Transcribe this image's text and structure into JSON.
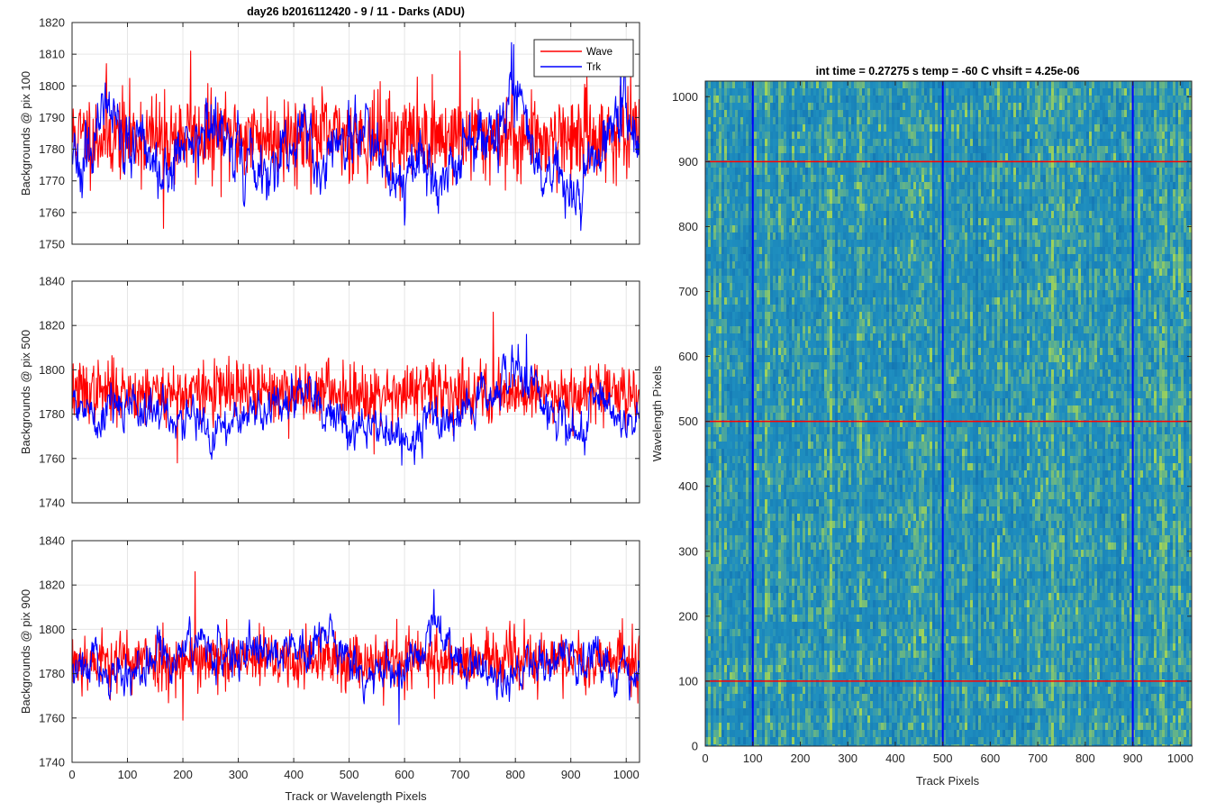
{
  "figure_title": "day26 b2016112420 - 9 / 11 - Darks (ADU)",
  "colors": {
    "wave": "#ff0000",
    "trk": "#0000ff",
    "grid": "#e5e5e5",
    "axis": "#262626",
    "heat_low": "#1f8fbf",
    "heat_high": "#9fd35a"
  },
  "chart_data": [
    {
      "type": "line",
      "ylabel": "Backgrounds @ pix 100",
      "xlabel": "",
      "xlim": [
        0,
        1024
      ],
      "ylim": [
        1750,
        1820
      ],
      "xticks": [
        0,
        100,
        200,
        300,
        400,
        500,
        600,
        700,
        800,
        900,
        1000
      ],
      "yticks": [
        1750,
        1760,
        1770,
        1780,
        1790,
        1800,
        1810,
        1820
      ],
      "legend": {
        "placement": "top-right",
        "entries": [
          "Wave",
          "Trk"
        ]
      },
      "grid": true,
      "series": [
        {
          "name": "Wave",
          "color": "#ff0000",
          "mean": 1784,
          "noise": 9,
          "seed": 11,
          "bumps": [],
          "extremes": [
            [
              62,
              1807
            ],
            [
              165,
              1755
            ],
            [
              214,
              1811
            ],
            [
              700,
              1811
            ]
          ]
        },
        {
          "name": "Trk",
          "color": "#0000ff",
          "mean": 1781,
          "noise": 3.5,
          "seed": 23,
          "bumps": [
            [
              60,
              12,
              6
            ],
            [
              165,
              25,
              -7
            ],
            [
              250,
              20,
              5
            ],
            [
              350,
              25,
              -10
            ],
            [
              450,
              12,
              -6
            ],
            [
              590,
              25,
              -12
            ],
            [
              660,
              30,
              -6
            ],
            [
              800,
              15,
              20
            ],
            [
              850,
              30,
              -8
            ],
            [
              900,
              20,
              -12
            ],
            [
              990,
              18,
              15
            ]
          ],
          "extremes": [
            [
              797,
              1813
            ],
            [
              600,
              1756
            ],
            [
              990,
              1809
            ]
          ]
        }
      ]
    },
    {
      "type": "line",
      "ylabel": "Backgrounds @ pix 500",
      "xlabel": "",
      "xlim": [
        0,
        1024
      ],
      "ylim": [
        1740,
        1840
      ],
      "xticks": [
        0,
        100,
        200,
        300,
        400,
        500,
        600,
        700,
        800,
        900,
        1000
      ],
      "yticks": [
        1740,
        1760,
        1780,
        1800,
        1820,
        1840
      ],
      "grid": true,
      "series": [
        {
          "name": "Wave",
          "color": "#ff0000",
          "mean": 1790,
          "noise": 9,
          "seed": 37,
          "bumps": [],
          "extremes": [
            [
              760,
              1826
            ],
            [
              190,
              1758
            ],
            [
              545,
              1762
            ]
          ]
        },
        {
          "name": "Trk",
          "color": "#0000ff",
          "mean": 1780,
          "noise": 3.5,
          "seed": 41,
          "bumps": [
            [
              50,
              40,
              5
            ],
            [
              260,
              40,
              -6
            ],
            [
              400,
              30,
              8
            ],
            [
              570,
              50,
              -10
            ],
            [
              800,
              40,
              20
            ],
            [
              880,
              40,
              -7
            ]
          ],
          "extremes": [
            [
              820,
              1816
            ],
            [
              595,
              1757
            ]
          ]
        }
      ]
    },
    {
      "type": "line",
      "ylabel": "Backgrounds @ pix 900",
      "xlabel": "Track or Wavelength Pixels",
      "xlim": [
        0,
        1024
      ],
      "ylim": [
        1740,
        1840
      ],
      "xticks": [
        0,
        100,
        200,
        300,
        400,
        500,
        600,
        700,
        800,
        900,
        1000
      ],
      "yticks": [
        1740,
        1760,
        1780,
        1800,
        1820,
        1840
      ],
      "grid": true,
      "series": [
        {
          "name": "Wave",
          "color": "#ff0000",
          "mean": 1786,
          "noise": 9,
          "seed": 53,
          "bumps": [],
          "extremes": [
            [
              222,
              1826
            ],
            [
              200,
              1759
            ]
          ]
        },
        {
          "name": "Trk",
          "color": "#0000ff",
          "mean": 1785,
          "noise": 3.5,
          "seed": 67,
          "bumps": [
            [
              100,
              40,
              -8
            ],
            [
              230,
              40,
              6
            ],
            [
              360,
              30,
              8
            ],
            [
              460,
              25,
              12
            ],
            [
              560,
              40,
              -6
            ],
            [
              660,
              20,
              18
            ],
            [
              790,
              40,
              -8
            ],
            [
              880,
              40,
              5
            ]
          ],
          "extremes": [
            [
              653,
              1818
            ],
            [
              590,
              1757
            ]
          ]
        }
      ]
    },
    {
      "type": "heatmap",
      "title": "int time = 0.27275 s    temp = -60 C    vhsift = 4.25e-06",
      "xlabel": "Track Pixels",
      "ylabel": "Wavelength Pixels",
      "xlim": [
        0,
        1024
      ],
      "ylim": [
        0,
        1024
      ],
      "xticks": [
        0,
        100,
        200,
        300,
        400,
        500,
        600,
        700,
        800,
        900,
        1000
      ],
      "yticks": [
        0,
        100,
        200,
        300,
        400,
        500,
        600,
        700,
        800,
        900,
        1000
      ],
      "vertical_lines": [
        100,
        500,
        900
      ],
      "horizontal_lines": [
        100,
        500,
        900
      ],
      "vertical_line_color": "#0000ff",
      "horizontal_line_color": "#ff0000"
    }
  ]
}
